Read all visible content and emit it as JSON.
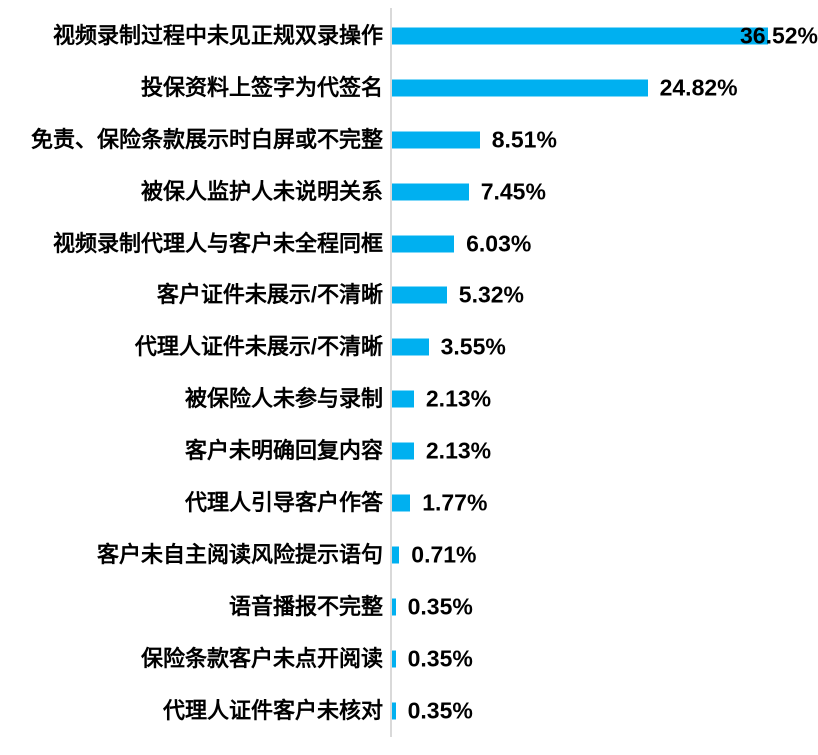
{
  "chart_data": {
    "type": "bar",
    "orientation": "horizontal",
    "title": "",
    "xlabel": "",
    "ylabel": "",
    "grid": false,
    "legend": false,
    "xlim": [
      0,
      40
    ],
    "bar_color": "#00b0f0",
    "text_color": "#000000",
    "axis_line_color": "#d9d9d9",
    "categories": [
      "视频录制过程中未见正规双录操作",
      "投保资料上签字为代签名",
      "免责、保险条款展示时白屏或不完整",
      "被保人监护人未说明关系",
      "视频录制代理人与客户未全程同框",
      "客户证件未展示/不清晰",
      "代理人证件未展示/不清晰",
      "被保险人未参与录制",
      "客户未明确回复内容",
      "代理人引导客户作答",
      "客户未自主阅读风险提示语句",
      "语音播报不完整",
      "保险条款客户未点开阅读",
      "代理人证件客户未核对"
    ],
    "values": [
      36.52,
      24.82,
      8.51,
      7.45,
      6.03,
      5.32,
      3.55,
      2.13,
      2.13,
      1.77,
      0.71,
      0.35,
      0.35,
      0.35
    ],
    "value_labels": [
      "36.52%",
      "24.82%",
      "8.51%",
      "7.45%",
      "6.03%",
      "5.32%",
      "3.55%",
      "2.13%",
      "2.13%",
      "1.77%",
      "0.71%",
      "0.35%",
      "0.35%",
      "0.35%"
    ]
  }
}
